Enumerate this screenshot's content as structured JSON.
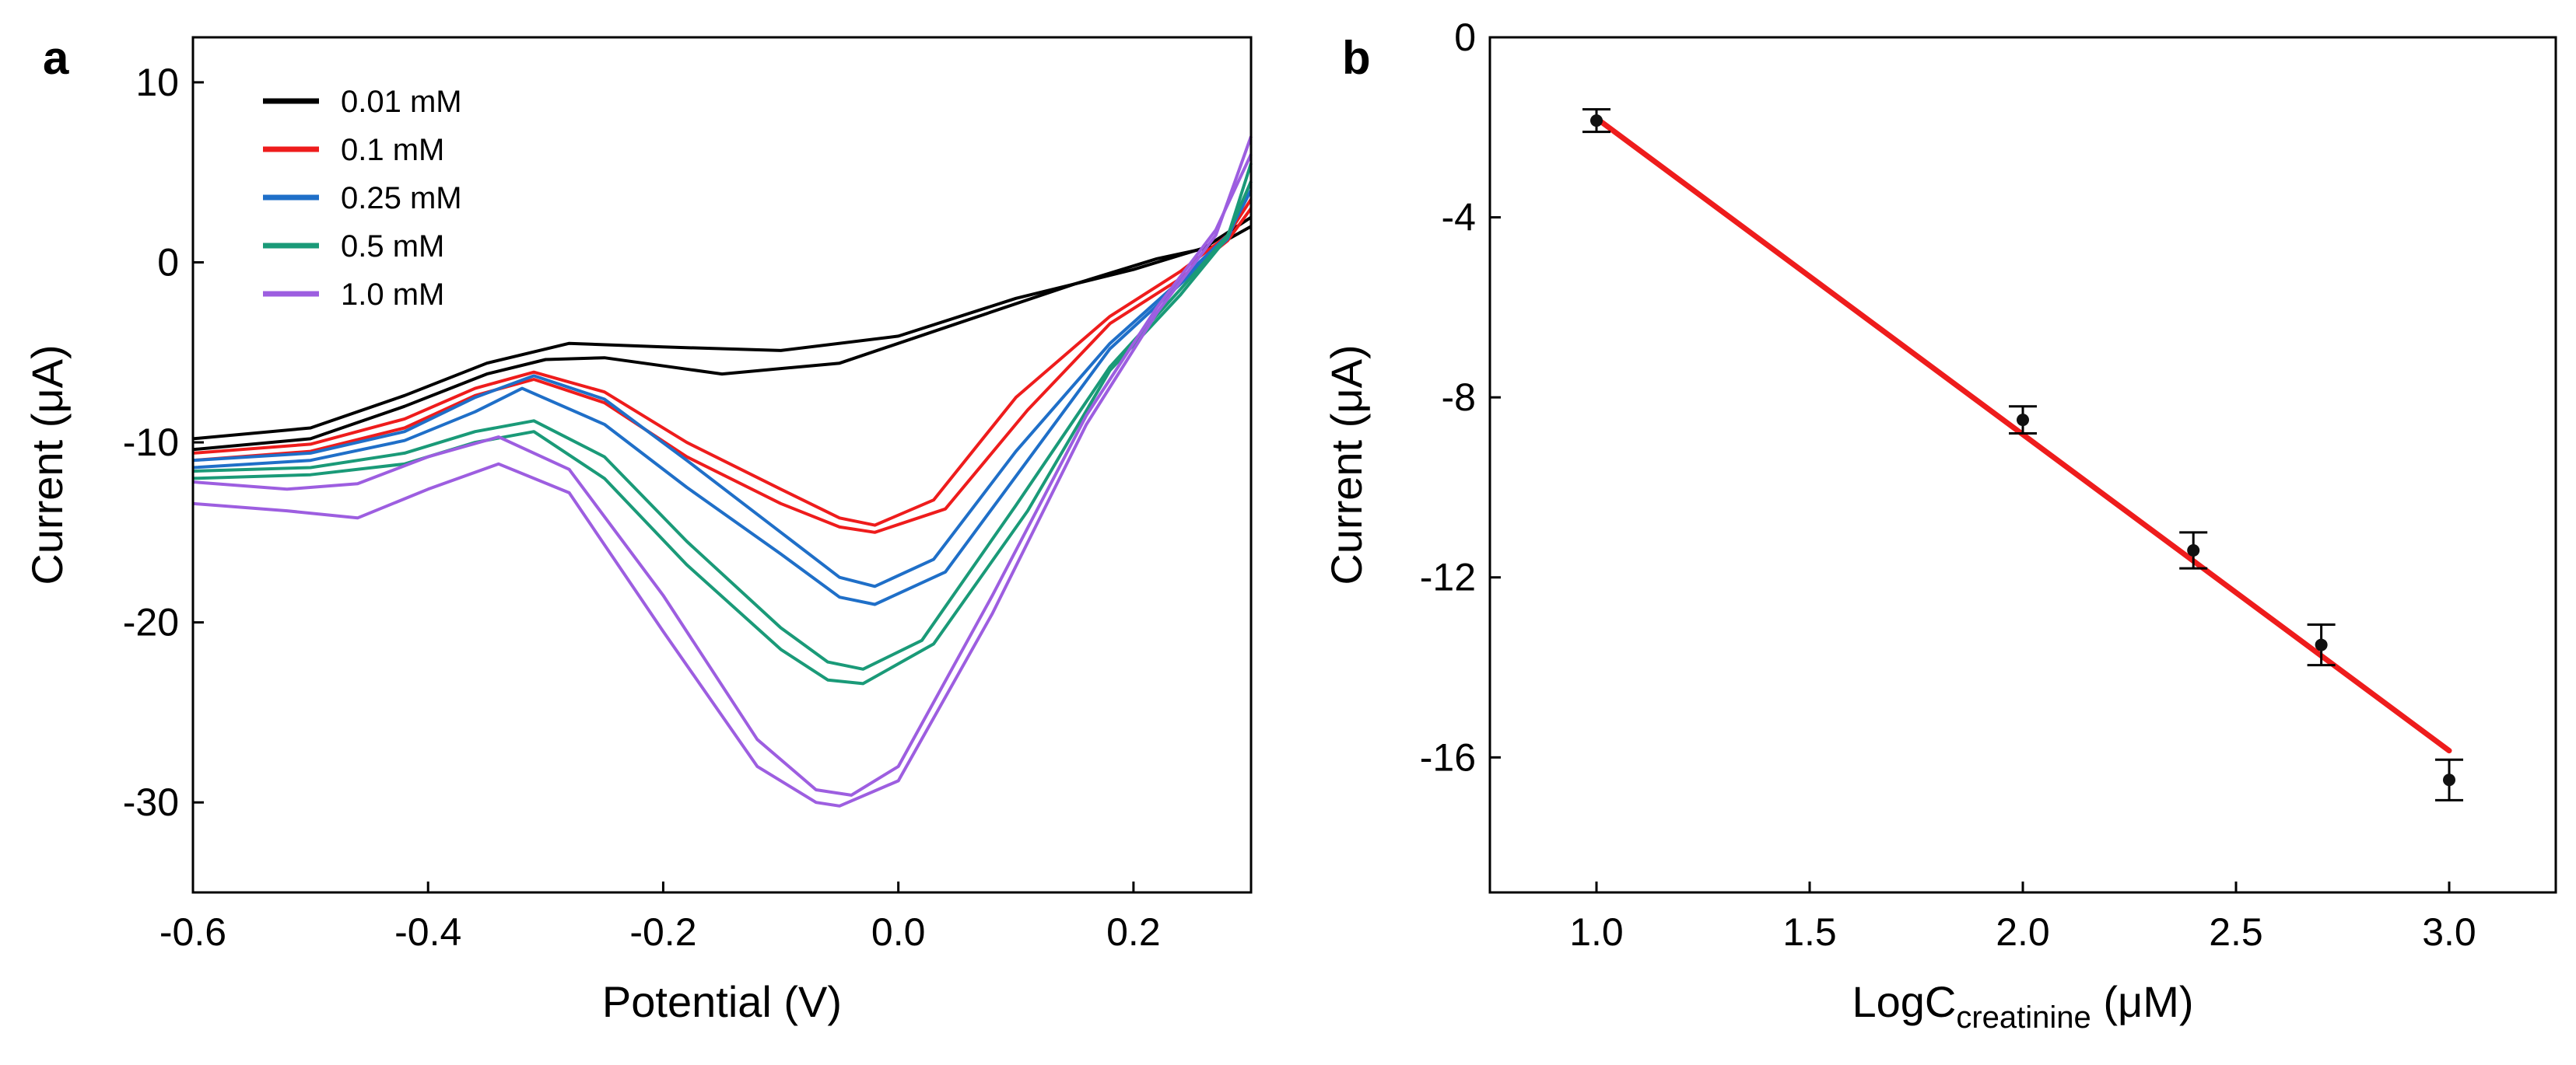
{
  "chart_data": [
    {
      "type": "line",
      "panel": "a",
      "title": "",
      "xlabel": "Potential (V)",
      "ylabel": "Current (μA)",
      "xlim": [
        -0.6,
        0.3
      ],
      "ylim": [
        -35,
        12.5
      ],
      "x_ticks": [
        -0.6,
        -0.4,
        -0.2,
        0.0,
        0.2
      ],
      "x_tick_labels": [
        "-0.6",
        "-0.4",
        "-0.2",
        "0.0",
        "0.2"
      ],
      "y_ticks": [
        10,
        0,
        -10,
        -20,
        -30
      ],
      "y_tick_labels": [
        "10",
        "0",
        "-10",
        "-20",
        "-30"
      ],
      "grid": false,
      "legend_position": "top-left",
      "series": [
        {
          "name": "0.01 mM",
          "color": "#000000",
          "curves": [
            [
              [
                -0.6,
                -10.4
              ],
              [
                -0.5,
                -9.8
              ],
              [
                -0.42,
                -8.0
              ],
              [
                -0.35,
                -6.2
              ],
              [
                -0.3,
                -5.4
              ],
              [
                -0.25,
                -5.3
              ],
              [
                -0.15,
                -6.2
              ],
              [
                -0.05,
                -5.6
              ],
              [
                0.05,
                -3.4
              ],
              [
                0.15,
                -1.2
              ],
              [
                0.22,
                0.2
              ],
              [
                0.27,
                0.9
              ],
              [
                0.3,
                2.0
              ]
            ],
            [
              [
                -0.6,
                -9.8
              ],
              [
                -0.5,
                -9.2
              ],
              [
                -0.42,
                -7.4
              ],
              [
                -0.35,
                -5.6
              ],
              [
                -0.28,
                -4.5
              ],
              [
                -0.2,
                -4.7
              ],
              [
                -0.1,
                -4.9
              ],
              [
                0.0,
                -4.1
              ],
              [
                0.1,
                -2.0
              ],
              [
                0.2,
                -0.4
              ],
              [
                0.26,
                0.8
              ],
              [
                0.3,
                2.5
              ]
            ]
          ]
        },
        {
          "name": "0.1 mM",
          "color": "#ee1c1c",
          "curves": [
            [
              [
                -0.6,
                -10.6
              ],
              [
                -0.5,
                -10.1
              ],
              [
                -0.42,
                -8.7
              ],
              [
                -0.36,
                -7.0
              ],
              [
                -0.31,
                -6.1
              ],
              [
                -0.25,
                -7.2
              ],
              [
                -0.18,
                -10.0
              ],
              [
                -0.1,
                -12.6
              ],
              [
                -0.05,
                -14.2
              ],
              [
                -0.02,
                -14.6
              ],
              [
                0.03,
                -13.2
              ],
              [
                0.1,
                -7.5
              ],
              [
                0.18,
                -3.0
              ],
              [
                0.24,
                -0.5
              ],
              [
                0.28,
                1.5
              ],
              [
                0.3,
                3.5
              ]
            ],
            [
              [
                -0.6,
                -11.0
              ],
              [
                -0.5,
                -10.5
              ],
              [
                -0.42,
                -9.2
              ],
              [
                -0.36,
                -7.4
              ],
              [
                -0.31,
                -6.5
              ],
              [
                -0.25,
                -7.8
              ],
              [
                -0.18,
                -10.8
              ],
              [
                -0.1,
                -13.4
              ],
              [
                -0.05,
                -14.7
              ],
              [
                -0.02,
                -15.0
              ],
              [
                0.04,
                -13.7
              ],
              [
                0.11,
                -8.2
              ],
              [
                0.18,
                -3.4
              ],
              [
                0.24,
                -0.9
              ],
              [
                0.28,
                1.2
              ],
              [
                0.3,
                3.0
              ]
            ]
          ]
        },
        {
          "name": "0.25 mM",
          "color": "#1f6fc8",
          "curves": [
            [
              [
                -0.6,
                -11.0
              ],
              [
                -0.5,
                -10.6
              ],
              [
                -0.42,
                -9.4
              ],
              [
                -0.36,
                -7.5
              ],
              [
                -0.31,
                -6.3
              ],
              [
                -0.25,
                -7.6
              ],
              [
                -0.18,
                -11.0
              ],
              [
                -0.1,
                -15.0
              ],
              [
                -0.05,
                -17.5
              ],
              [
                -0.02,
                -18.0
              ],
              [
                0.03,
                -16.5
              ],
              [
                0.1,
                -10.5
              ],
              [
                0.18,
                -4.5
              ],
              [
                0.24,
                -1.0
              ],
              [
                0.28,
                1.5
              ],
              [
                0.3,
                4.0
              ]
            ],
            [
              [
                -0.6,
                -11.4
              ],
              [
                -0.5,
                -11.0
              ],
              [
                -0.42,
                -9.9
              ],
              [
                -0.36,
                -8.3
              ],
              [
                -0.32,
                -7.0
              ],
              [
                -0.25,
                -9.0
              ],
              [
                -0.18,
                -12.5
              ],
              [
                -0.1,
                -16.2
              ],
              [
                -0.05,
                -18.6
              ],
              [
                -0.02,
                -19.0
              ],
              [
                0.04,
                -17.2
              ],
              [
                0.11,
                -11.0
              ],
              [
                0.18,
                -4.8
              ],
              [
                0.24,
                -1.2
              ],
              [
                0.28,
                1.3
              ],
              [
                0.3,
                4.5
              ]
            ]
          ]
        },
        {
          "name": "0.5 mM",
          "color": "#1a9a78",
          "curves": [
            [
              [
                -0.6,
                -11.6
              ],
              [
                -0.5,
                -11.4
              ],
              [
                -0.42,
                -10.6
              ],
              [
                -0.36,
                -9.4
              ],
              [
                -0.31,
                -8.8
              ],
              [
                -0.25,
                -10.8
              ],
              [
                -0.18,
                -15.5
              ],
              [
                -0.1,
                -20.3
              ],
              [
                -0.06,
                -22.2
              ],
              [
                -0.03,
                -22.6
              ],
              [
                0.02,
                -21.0
              ],
              [
                0.1,
                -13.5
              ],
              [
                0.18,
                -5.8
              ],
              [
                0.24,
                -1.5
              ],
              [
                0.28,
                1.5
              ],
              [
                0.3,
                4.5
              ]
            ],
            [
              [
                -0.6,
                -12.0
              ],
              [
                -0.5,
                -11.8
              ],
              [
                -0.42,
                -11.2
              ],
              [
                -0.36,
                -10.0
              ],
              [
                -0.31,
                -9.4
              ],
              [
                -0.25,
                -12.0
              ],
              [
                -0.18,
                -16.8
              ],
              [
                -0.1,
                -21.5
              ],
              [
                -0.06,
                -23.2
              ],
              [
                -0.03,
                -23.4
              ],
              [
                0.03,
                -21.2
              ],
              [
                0.11,
                -13.8
              ],
              [
                0.18,
                -6.0
              ],
              [
                0.24,
                -1.8
              ],
              [
                0.28,
                1.4
              ],
              [
                0.3,
                5.5
              ]
            ]
          ]
        },
        {
          "name": "1.0 mM",
          "color": "#9d5ee0",
          "curves": [
            [
              [
                -0.6,
                -12.2
              ],
              [
                -0.52,
                -12.6
              ],
              [
                -0.46,
                -12.3
              ],
              [
                -0.4,
                -10.8
              ],
              [
                -0.34,
                -9.7
              ],
              [
                -0.28,
                -11.5
              ],
              [
                -0.2,
                -18.5
              ],
              [
                -0.12,
                -26.5
              ],
              [
                -0.07,
                -29.3
              ],
              [
                -0.04,
                -29.6
              ],
              [
                0.0,
                -28.0
              ],
              [
                0.08,
                -18.5
              ],
              [
                0.16,
                -8.5
              ],
              [
                0.22,
                -2.5
              ],
              [
                0.27,
                1.8
              ],
              [
                0.3,
                6.0
              ]
            ],
            [
              [
                -0.6,
                -13.4
              ],
              [
                -0.52,
                -13.8
              ],
              [
                -0.46,
                -14.2
              ],
              [
                -0.4,
                -12.6
              ],
              [
                -0.34,
                -11.2
              ],
              [
                -0.28,
                -12.8
              ],
              [
                -0.2,
                -20.5
              ],
              [
                -0.12,
                -28.0
              ],
              [
                -0.07,
                -30.0
              ],
              [
                -0.05,
                -30.2
              ],
              [
                0.0,
                -28.8
              ],
              [
                0.08,
                -19.5
              ],
              [
                0.16,
                -9.0
              ],
              [
                0.22,
                -2.8
              ],
              [
                0.27,
                1.5
              ],
              [
                0.3,
                7.0
              ]
            ]
          ]
        }
      ]
    },
    {
      "type": "scatter",
      "panel": "b",
      "title": "",
      "xlabel": "LogC",
      "xlabel_sub": "creatinine",
      "xlabel_unit": " (μM)",
      "ylabel": "Current (μA)",
      "xlim": [
        0.75,
        3.25
      ],
      "ylim": [
        -19,
        0
      ],
      "x_ticks": [
        1.0,
        1.5,
        2.0,
        2.5,
        3.0
      ],
      "x_tick_labels": [
        "1.0",
        "1.5",
        "2.0",
        "2.5",
        "3.0"
      ],
      "y_ticks": [
        0,
        -4,
        -8,
        -12,
        -16
      ],
      "y_tick_labels": [
        "0",
        "-4",
        "-8",
        "-12",
        "-16"
      ],
      "grid": false,
      "points": [
        {
          "x": 1.0,
          "y": -1.85,
          "err": 0.25
        },
        {
          "x": 2.0,
          "y": -8.5,
          "err": 0.3
        },
        {
          "x": 2.4,
          "y": -11.4,
          "err": 0.4
        },
        {
          "x": 2.7,
          "y": -13.5,
          "err": 0.45
        },
        {
          "x": 3.0,
          "y": -16.5,
          "err": 0.45
        }
      ],
      "fit_line": {
        "x": [
          1.0,
          3.0
        ],
        "y": [
          -1.8,
          -15.85
        ],
        "color": "#ee1c1c"
      }
    }
  ]
}
